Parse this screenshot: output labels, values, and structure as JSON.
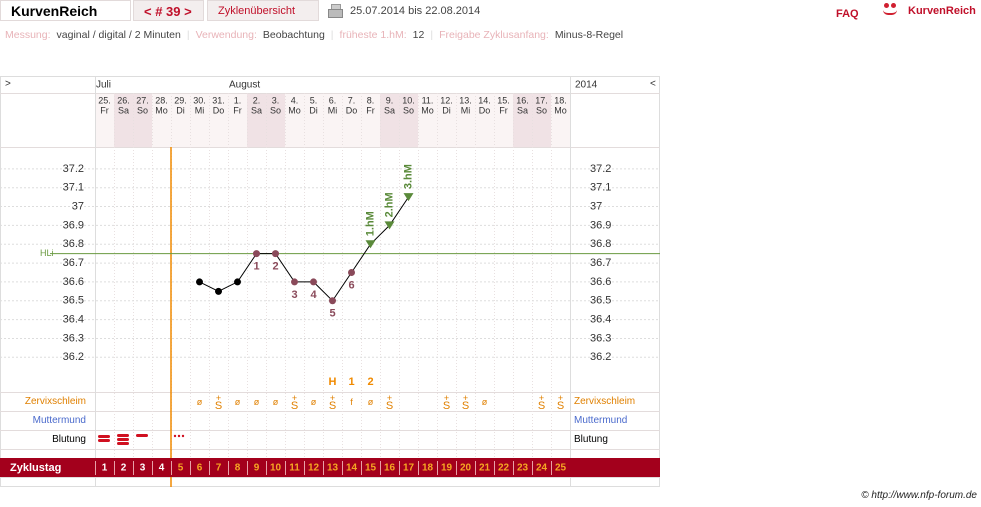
{
  "header": {
    "logo": "KurvenReich",
    "cycle_nav": "< # 39 >",
    "overview": "Zyklenübersicht",
    "date_range": "25.07.2014 bis 22.08.2014",
    "faq": "FAQ",
    "brand": "KurvenReich"
  },
  "info": {
    "separator": "|",
    "items": [
      {
        "label": "Messung:",
        "value": "vaginal / digital / 2 Minuten"
      },
      {
        "label": "Verwendung:",
        "value": "Beobachtung"
      },
      {
        "label": "früheste 1.hM:",
        "value": "12"
      },
      {
        "label": "Freigabe Zyklusanfang:",
        "value": "Minus-8-Regel"
      }
    ]
  },
  "nav": {
    "prev": ">",
    "next": "<",
    "year": "2014"
  },
  "months": [
    "Juli",
    null,
    null,
    null,
    null,
    null,
    null,
    "August",
    null,
    null,
    null,
    null,
    null,
    null,
    null,
    null,
    null,
    null,
    null,
    null,
    null,
    null,
    null,
    null,
    null
  ],
  "weekdays": [
    "Fr",
    "Sa",
    "So",
    "Mo",
    "Di",
    "Mi",
    "Do",
    "Fr",
    "Sa",
    "So",
    "Mo",
    "Di",
    "Mi",
    "Do",
    "Fr",
    "Sa",
    "So",
    "Mo",
    "Di",
    "Mi",
    "Do",
    "Fr",
    "Sa",
    "So",
    "Mo"
  ],
  "chart_data": {
    "type": "line",
    "categories": [
      "25.",
      "26.",
      "27.",
      "28.",
      "29.",
      "30.",
      "31.",
      "1.",
      "2.",
      "3.",
      "4.",
      "5.",
      "6.",
      "7.",
      "8.",
      "9.",
      "10.",
      "11.",
      "12.",
      "13.",
      "14.",
      "15.",
      "16.",
      "17.",
      "18."
    ],
    "values": [
      null,
      null,
      null,
      null,
      null,
      36.6,
      36.55,
      36.6,
      36.75,
      36.75,
      36.6,
      36.6,
      36.5,
      36.65,
      36.8,
      36.9,
      37.05,
      null,
      null,
      null,
      null,
      null,
      null,
      null,
      null
    ],
    "point_labels": [
      null,
      null,
      null,
      null,
      null,
      null,
      null,
      null,
      "1",
      "2",
      "3",
      "4",
      "5",
      "6",
      "1.hM",
      "2.hM",
      "3.hM",
      null,
      null,
      null,
      null,
      null,
      null,
      null,
      null
    ],
    "point_colors": [
      null,
      null,
      null,
      null,
      null,
      "#000000",
      "#000000",
      "#000000",
      "#8a4a5a",
      "#8a4a5a",
      "#8a4a5a",
      "#8a4a5a",
      "#8a4a5a",
      "#8a4a5a",
      "#5a8a3a",
      "#5a8a3a",
      "#5a8a3a",
      null,
      null,
      null,
      null,
      null,
      null,
      null,
      null
    ],
    "point_markers": [
      null,
      null,
      null,
      null,
      null,
      "circle",
      "circle",
      "circle",
      "circle",
      "circle",
      "circle",
      "circle",
      "circle",
      "circle",
      "triangle",
      "triangle",
      "triangle",
      null,
      null,
      null,
      null,
      null,
      null,
      null,
      null
    ],
    "peak_marks": [
      null,
      null,
      null,
      null,
      null,
      null,
      null,
      null,
      null,
      null,
      null,
      null,
      "H",
      "1",
      "2",
      null,
      null,
      null,
      null,
      null,
      null,
      null,
      null,
      null,
      null
    ],
    "hline": {
      "label": "HLi",
      "value": 36.75,
      "color": "#6a9a40"
    },
    "ylim": [
      36.0,
      37.3
    ],
    "yticks": [
      36.2,
      36.3,
      36.4,
      36.5,
      36.6,
      36.7,
      36.8,
      36.9,
      37,
      37.1,
      37.2
    ],
    "grid": true
  },
  "rows": {
    "cervix": {
      "label": "Zervixschleim",
      "values": [
        null,
        null,
        null,
        null,
        null,
        "ø",
        "+ S",
        "ø",
        "ø",
        "ø",
        "+ S",
        "ø",
        "+ S",
        "f",
        "ø",
        "+ S",
        null,
        null,
        "+ S",
        "+ S",
        "ø",
        null,
        null,
        "+ S",
        "+ S"
      ]
    },
    "cervix_mouth": {
      "label": "Muttermund"
    },
    "bleeding": {
      "label": "Blutung"
    },
    "cycle_day": {
      "label": "Zyklustag",
      "values": [
        1,
        2,
        3,
        4,
        5,
        6,
        7,
        8,
        9,
        10,
        11,
        12,
        13,
        14,
        15,
        16,
        17,
        18,
        19,
        20,
        21,
        22,
        23,
        24,
        25
      ],
      "colors": [
        "#ffffff",
        "#ffffff",
        "#ffffff",
        "#ffffff",
        "#f5a623",
        "#f5a623",
        "#f5a623",
        "#f5a623",
        "#f5a623",
        "#f5a623",
        "#f5a623",
        "#f5a623",
        "#f5a623",
        "#f5a623",
        "#f5a623",
        "#f5a623",
        "#f5a623",
        "#f5a623",
        "#f5a623",
        "#f5a623",
        "#f5a623",
        "#f5a623",
        "#f5a623",
        "#f5a623",
        "#f5a623"
      ]
    }
  },
  "footer": "© http://www.nfp-forum.de"
}
